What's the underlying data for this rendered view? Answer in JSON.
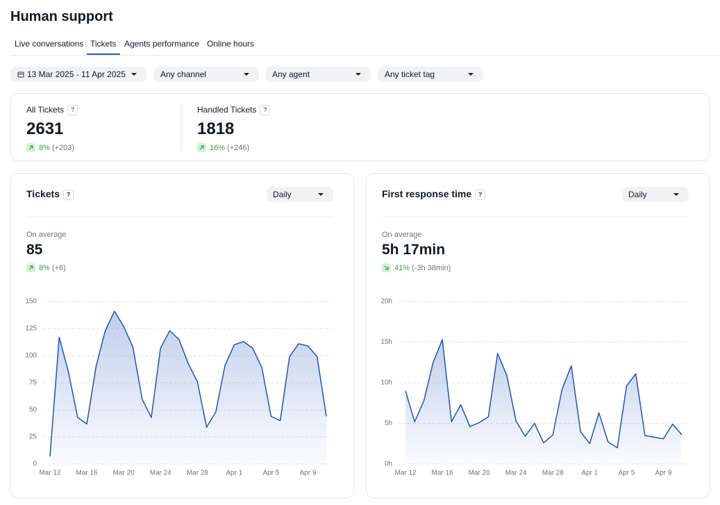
{
  "header": {
    "title": "Human support"
  },
  "tabs": [
    "Live conversations",
    "Tickets",
    "Agents performance",
    "Online hours"
  ],
  "active_tab": 1,
  "filters": [
    "13 Mar 2025 - 11 Apr 2025",
    "Any channel",
    "Any agent",
    "Any ticket tag"
  ],
  "help_icon": "?",
  "kpis": [
    {
      "label": "All Tickets",
      "value": 2631,
      "change": "8%",
      "delta": "(+203)",
      "trend": "up"
    },
    {
      "label": "Handled Tickets",
      "value": 1818,
      "change": "16%",
      "delta": "(+246)",
      "trend": "up"
    }
  ],
  "chart_data": [
    {
      "type": "line",
      "title": "Tickets",
      "period": "Daily",
      "summary_label": "On average",
      "summary_value": 85,
      "change": "8%",
      "delta": "(+6)",
      "trend": "up",
      "categories": [
        "Mar 12",
        null,
        null,
        null,
        "Mar 16",
        null,
        null,
        null,
        "Mar 20",
        null,
        null,
        null,
        "Mar 24",
        null,
        null,
        null,
        "Mar 28",
        null,
        null,
        null,
        "Apr 1",
        null,
        null,
        null,
        "Apr 5",
        null,
        null,
        null,
        "Apr 9",
        null,
        null
      ],
      "values": [
        7,
        117,
        85,
        43,
        37,
        90,
        123,
        141,
        127,
        108,
        60,
        43,
        107,
        123,
        115,
        93,
        76,
        34,
        48,
        91,
        110,
        113,
        107,
        89,
        44,
        40,
        99,
        111,
        109,
        99,
        44
      ],
      "color": "#1f52b8",
      "ylim": [
        0,
        150
      ],
      "yticks": [
        0,
        25,
        50,
        75,
        100,
        125,
        150
      ],
      "grid": true
    },
    {
      "type": "line",
      "title": "First response time",
      "period": "Daily",
      "summary_label": "On average",
      "summary_value": "5h 17min",
      "change": "41%",
      "delta": "(-3h 38min)",
      "trend": "down",
      "categories": [
        "Mar 12",
        null,
        null,
        null,
        "Mar 16",
        null,
        null,
        null,
        "Mar 20",
        null,
        null,
        null,
        "Mar 24",
        null,
        null,
        null,
        "Mar 28",
        null,
        null,
        null,
        "Apr 1",
        null,
        null,
        null,
        "Apr 5",
        null,
        null,
        null,
        "Apr 9",
        null,
        null
      ],
      "values": [
        9,
        5.2,
        7.8,
        12.5,
        15.3,
        5.2,
        7.3,
        4.6,
        5.1,
        5.8,
        13.6,
        10.9,
        5.3,
        3.4,
        5.0,
        2.6,
        3.6,
        9.2,
        12.1,
        4.0,
        2.5,
        6.3,
        2.7,
        2.0,
        9.6,
        11.1,
        3.5,
        3.3,
        3.1,
        4.9,
        3.6
      ],
      "color": "#1f52b8",
      "ylim": [
        0,
        20
      ],
      "yticks": [
        {
          "value": 0,
          "label": "0h"
        },
        {
          "value": 5,
          "label": "5h"
        },
        {
          "value": 10,
          "label": "10h"
        },
        {
          "value": 15,
          "label": "15h"
        },
        {
          "value": 20,
          "label": "20h"
        }
      ],
      "grid": true
    }
  ]
}
